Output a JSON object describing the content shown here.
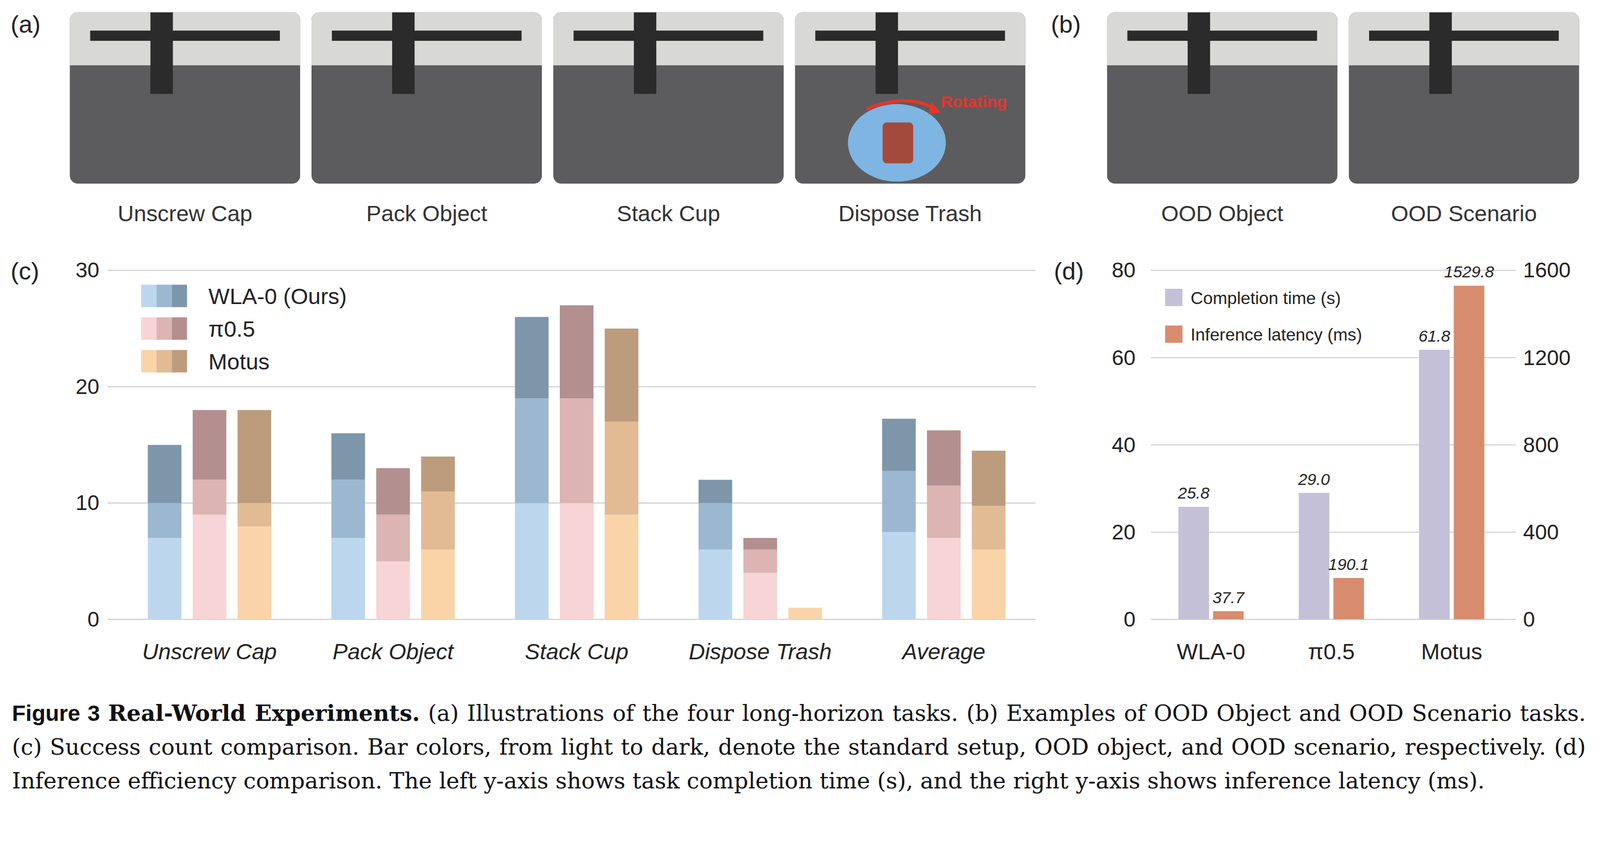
{
  "figure": {
    "panels": [
      {
        "letter": "(a)",
        "photos": [
          "Unscrew Cap",
          "Pack Object",
          "Stack Cup",
          "Dispose Trash"
        ]
      },
      {
        "letter": "(b)",
        "photos": [
          "OOD Object",
          "OOD Scenario"
        ]
      }
    ],
    "photo_annotation": "Rotating",
    "caption": {
      "label": "Figure 3",
      "title": "Real-World Experiments.",
      "text": "(a) Illustrations of the four long-horizon tasks. (b) Examples of OOD Object and OOD Scenario tasks. (c) Success count comparison. Bar colors, from light to dark, denote the standard setup, OOD object, and OOD scenario, respectively. (d) Inference efficiency comparison. The left y-axis shows task completion time (s), and the right y-axis shows inference latency (ms)."
    }
  },
  "chart_data": [
    {
      "type": "bar",
      "panel_label": "(c)",
      "stacked": true,
      "grid": true,
      "legend": "upper-left",
      "categories": [
        "Unscrew Cap",
        "Pack Object",
        "Stack Cup",
        "Dispose Trash",
        "Average"
      ],
      "ylim": [
        0,
        30
      ],
      "yticks": [
        0,
        10,
        20,
        30
      ],
      "series": [
        {
          "name": "WLA-0 (Ours)",
          "stacks": [
            {
              "color": "#bcd6ee",
              "values": [
                7,
                7,
                10,
                6,
                7.5
              ]
            },
            {
              "color": "#9cb7d0",
              "values": [
                3,
                5,
                9,
                4,
                5.25
              ]
            },
            {
              "color": "#7d96aa",
              "values": [
                5,
                4,
                7,
                2,
                4.5
              ]
            }
          ]
        },
        {
          "name": "π0.5",
          "stacks": [
            {
              "color": "#f7d4d5",
              "values": [
                9,
                5,
                10,
                4,
                7
              ]
            },
            {
              "color": "#dcb4b4",
              "values": [
                3,
                4,
                9,
                2,
                4.5
              ]
            },
            {
              "color": "#b38f8f",
              "values": [
                6,
                4,
                8,
                1,
                4.75
              ]
            }
          ]
        },
        {
          "name": "Motus",
          "stacks": [
            {
              "color": "#f8d4a8",
              "values": [
                8,
                6,
                9,
                1,
                6
              ]
            },
            {
              "color": "#e1bb93",
              "values": [
                2,
                5,
                8,
                0,
                3.75
              ]
            },
            {
              "color": "#bc9c7c",
              "values": [
                8,
                3,
                8,
                0,
                4.75
              ]
            }
          ]
        }
      ]
    },
    {
      "type": "bar",
      "panel_label": "(d)",
      "grid": true,
      "legend": "upper-left",
      "data_labels": true,
      "categories": [
        "WLA-0",
        "π0.5",
        "Motus"
      ],
      "ylim": [
        0,
        80
      ],
      "yticks": [
        0,
        20,
        40,
        60,
        80
      ],
      "y2lim": [
        0,
        1600
      ],
      "y2ticks": [
        0,
        400,
        800,
        1200,
        1600
      ],
      "series": [
        {
          "name": "Completion time (s)",
          "color": "#c4c0d8",
          "values": [
            25.8,
            29.0,
            61.8
          ],
          "value_labels": [
            "25.8",
            "29.0",
            "61.8"
          ]
        },
        {
          "name": "Inference latency (ms)",
          "color": "#d88c6e",
          "axis": "y2",
          "values": [
            37.7,
            190.1,
            1529.8
          ]
        }
      ]
    }
  ]
}
